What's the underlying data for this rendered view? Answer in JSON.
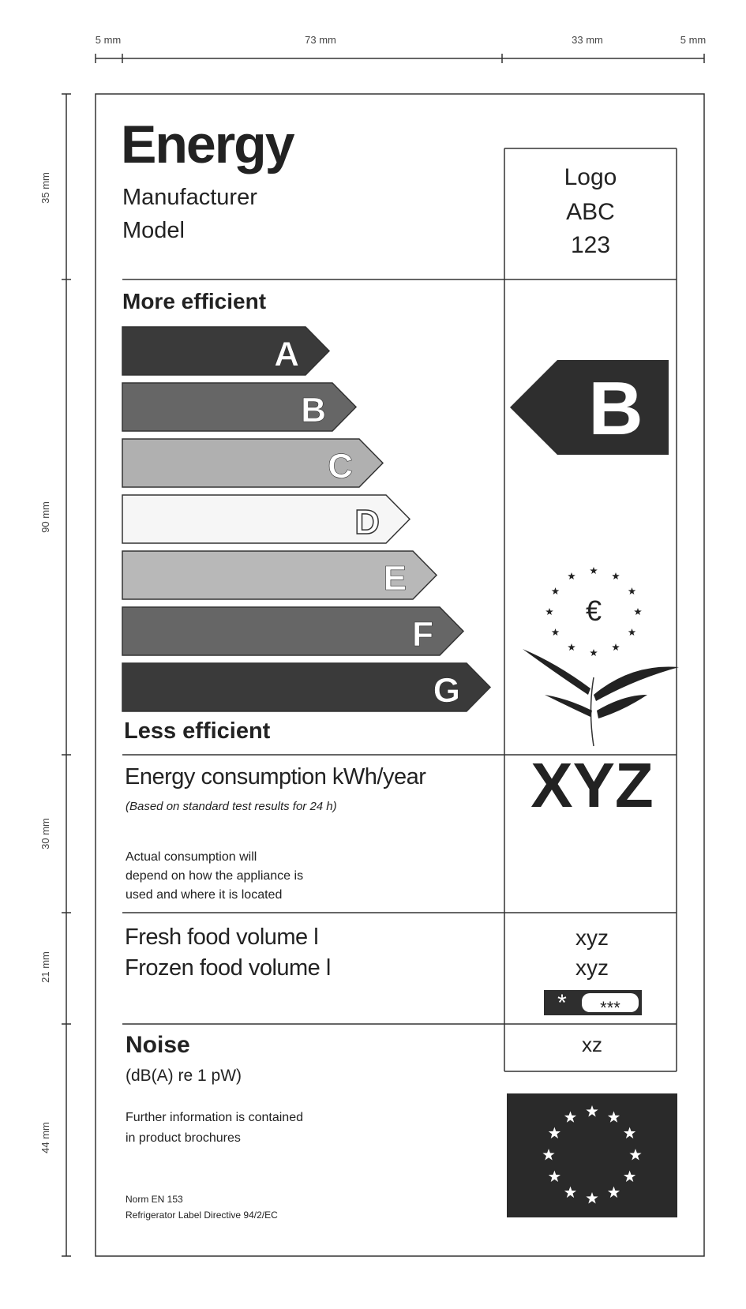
{
  "dimensions": {
    "top": [
      "5 mm",
      "73 mm",
      "33 mm",
      "5 mm"
    ],
    "left": [
      "35 mm",
      "90 mm",
      "30 mm",
      "21 mm",
      "44 mm"
    ]
  },
  "header": {
    "title": "Energy",
    "manufacturer": "Manufacturer",
    "model": "Model",
    "logo": [
      "Logo",
      "ABC",
      "123"
    ]
  },
  "scale": {
    "top_label": "More efficient",
    "bottom_label": "Less efficient",
    "classes": [
      "A",
      "B",
      "C",
      "D",
      "E",
      "F",
      "G"
    ],
    "rating": "B"
  },
  "consumption": {
    "label": "Energy consumption kWh/year",
    "note": "(Based on standard test results for 24 h)",
    "info": [
      "Actual consumption will",
      "depend on how the appliance is",
      "used and where it is located"
    ],
    "value": "XYZ"
  },
  "volume": {
    "fresh": "Fresh food volume l",
    "frozen": "Frozen food volume l",
    "fresh_value": "xyz",
    "frozen_value": "xyz",
    "stars": "***"
  },
  "noise": {
    "title": "Noise",
    "unit": "(dB(A) re 1 pW)",
    "value": "xz"
  },
  "info": [
    "Further information is contained",
    "in product brochures"
  ],
  "footer": [
    "Norm EN 153",
    "Refrigerator Label Directive 94/2/EC"
  ]
}
